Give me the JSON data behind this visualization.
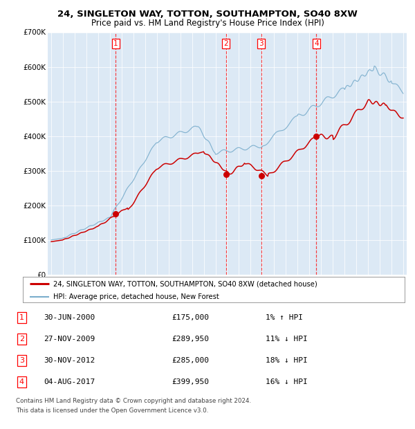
{
  "title": "24, SINGLETON WAY, TOTTON, SOUTHAMPTON, SO40 8XW",
  "subtitle": "Price paid vs. HM Land Registry's House Price Index (HPI)",
  "background_color": "#dce9f5",
  "ylim": [
    0,
    700000
  ],
  "yticks": [
    0,
    100000,
    200000,
    300000,
    400000,
    500000,
    600000,
    700000
  ],
  "ytick_labels": [
    "£0",
    "£100K",
    "£200K",
    "£300K",
    "£400K",
    "£500K",
    "£600K",
    "£700K"
  ],
  "legend_label_red": "24, SINGLETON WAY, TOTTON, SOUTHAMPTON, SO40 8XW (detached house)",
  "legend_label_blue": "HPI: Average price, detached house, New Forest",
  "transactions": [
    {
      "num": 1,
      "date": "30-JUN-2000",
      "price": "£175,000",
      "hpi": "1% ↑ HPI",
      "year": 2000.5,
      "y_val": 175000
    },
    {
      "num": 2,
      "date": "27-NOV-2009",
      "price": "£289,950",
      "hpi": "11% ↓ HPI",
      "year": 2009.9,
      "y_val": 289950
    },
    {
      "num": 3,
      "date": "30-NOV-2012",
      "price": "£285,000",
      "hpi": "18% ↓ HPI",
      "year": 2012.9,
      "y_val": 285000
    },
    {
      "num": 4,
      "date": "04-AUG-2017",
      "price": "£399,950",
      "hpi": "16% ↓ HPI",
      "year": 2017.6,
      "y_val": 399950
    }
  ],
  "footer_line1": "Contains HM Land Registry data © Crown copyright and database right 2024.",
  "footer_line2": "This data is licensed under the Open Government Licence v3.0.",
  "red_color": "#cc0000",
  "blue_color": "#7aadcc",
  "marker_color": "#cc0000",
  "xmin": 1995,
  "xmax": 2025
}
